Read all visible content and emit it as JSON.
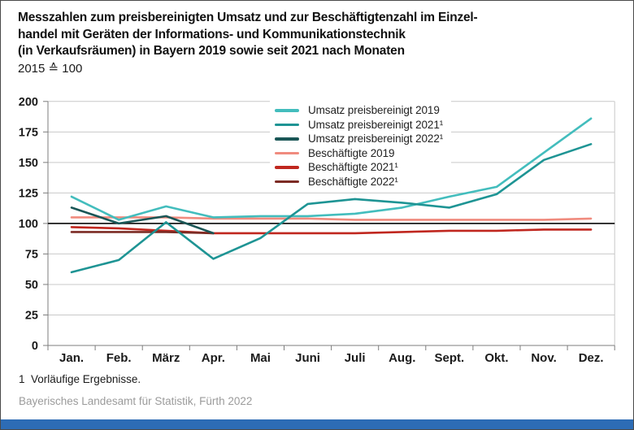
{
  "header": {
    "title_lines": [
      "Messzahlen zum preisbereinigten Umsatz und zur Beschäftigtenzahl im Einzel-",
      "handel mit Geräten der Informations- und Kommunikationstechnik",
      "(in Verkaufsräumen) in Bayern 2019 sowie seit 2021 nach Monaten"
    ],
    "index_base": "2015 ≙ 100"
  },
  "chart_data": {
    "type": "line",
    "title": "Messzahlen zum preisbereinigten Umsatz und zur Beschäftigtenzahl im Einzelhandel mit Geräten der Informations- und Kommunikationstechnik (in Verkaufsräumen) in Bayern 2019 sowie seit 2021 nach Monaten",
    "subtitle": "2015 ≙ 100",
    "categories": [
      "Jan.",
      "Feb.",
      "März",
      "Apr.",
      "Mai",
      "Juni",
      "Juli",
      "Aug.",
      "Sept.",
      "Okt.",
      "Nov.",
      "Dez."
    ],
    "xlabel": "",
    "ylabel": "",
    "ylim": [
      0,
      200
    ],
    "y_ticks": [
      0,
      25,
      50,
      75,
      100,
      125,
      150,
      175,
      200
    ],
    "reference_line": 100,
    "grid": true,
    "legend_position": "inside-top-center",
    "series": [
      {
        "name": "Umsatz preisbereinigt 2019",
        "color": "#43bdbd",
        "values": [
          122,
          103,
          114,
          105,
          106,
          106,
          108,
          113,
          122,
          130,
          158,
          186
        ]
      },
      {
        "name": "Umsatz preisbereinigt 2021¹",
        "color": "#1e9494",
        "values": [
          60,
          70,
          101,
          71,
          88,
          116,
          120,
          117,
          113,
          124,
          152,
          165
        ]
      },
      {
        "name": "Umsatz preisbereinigt 2022¹",
        "color": "#1a5656",
        "values": [
          113,
          100,
          106,
          92,
          null,
          null,
          null,
          null,
          null,
          null,
          null,
          null
        ]
      },
      {
        "name": "Beschäftigte 2019",
        "color": "#f08b7e",
        "values": [
          105,
          105,
          105,
          104,
          104,
          104,
          103,
          103,
          103,
          103,
          103,
          104
        ]
      },
      {
        "name": "Beschäftigte 2021¹",
        "color": "#c0271f",
        "values": [
          97,
          96,
          94,
          92,
          92,
          92,
          92,
          93,
          94,
          94,
          95,
          95
        ]
      },
      {
        "name": "Beschäftigte 2022¹",
        "color": "#7c2b24",
        "values": [
          93,
          93,
          93,
          92,
          null,
          null,
          null,
          null,
          null,
          null,
          null,
          null
        ]
      }
    ]
  },
  "footnote": "1  Vorläufige Ergebnisse.",
  "source": "Bayerisches Landesamt für Statistik, Fürth 2022",
  "colors": {
    "grid": "#c9c9c9",
    "axis": "#7d7d7d",
    "reference_line": "#1a1a1a",
    "text": "#1a1a1a",
    "footer_bar": "#2d6cb5"
  }
}
